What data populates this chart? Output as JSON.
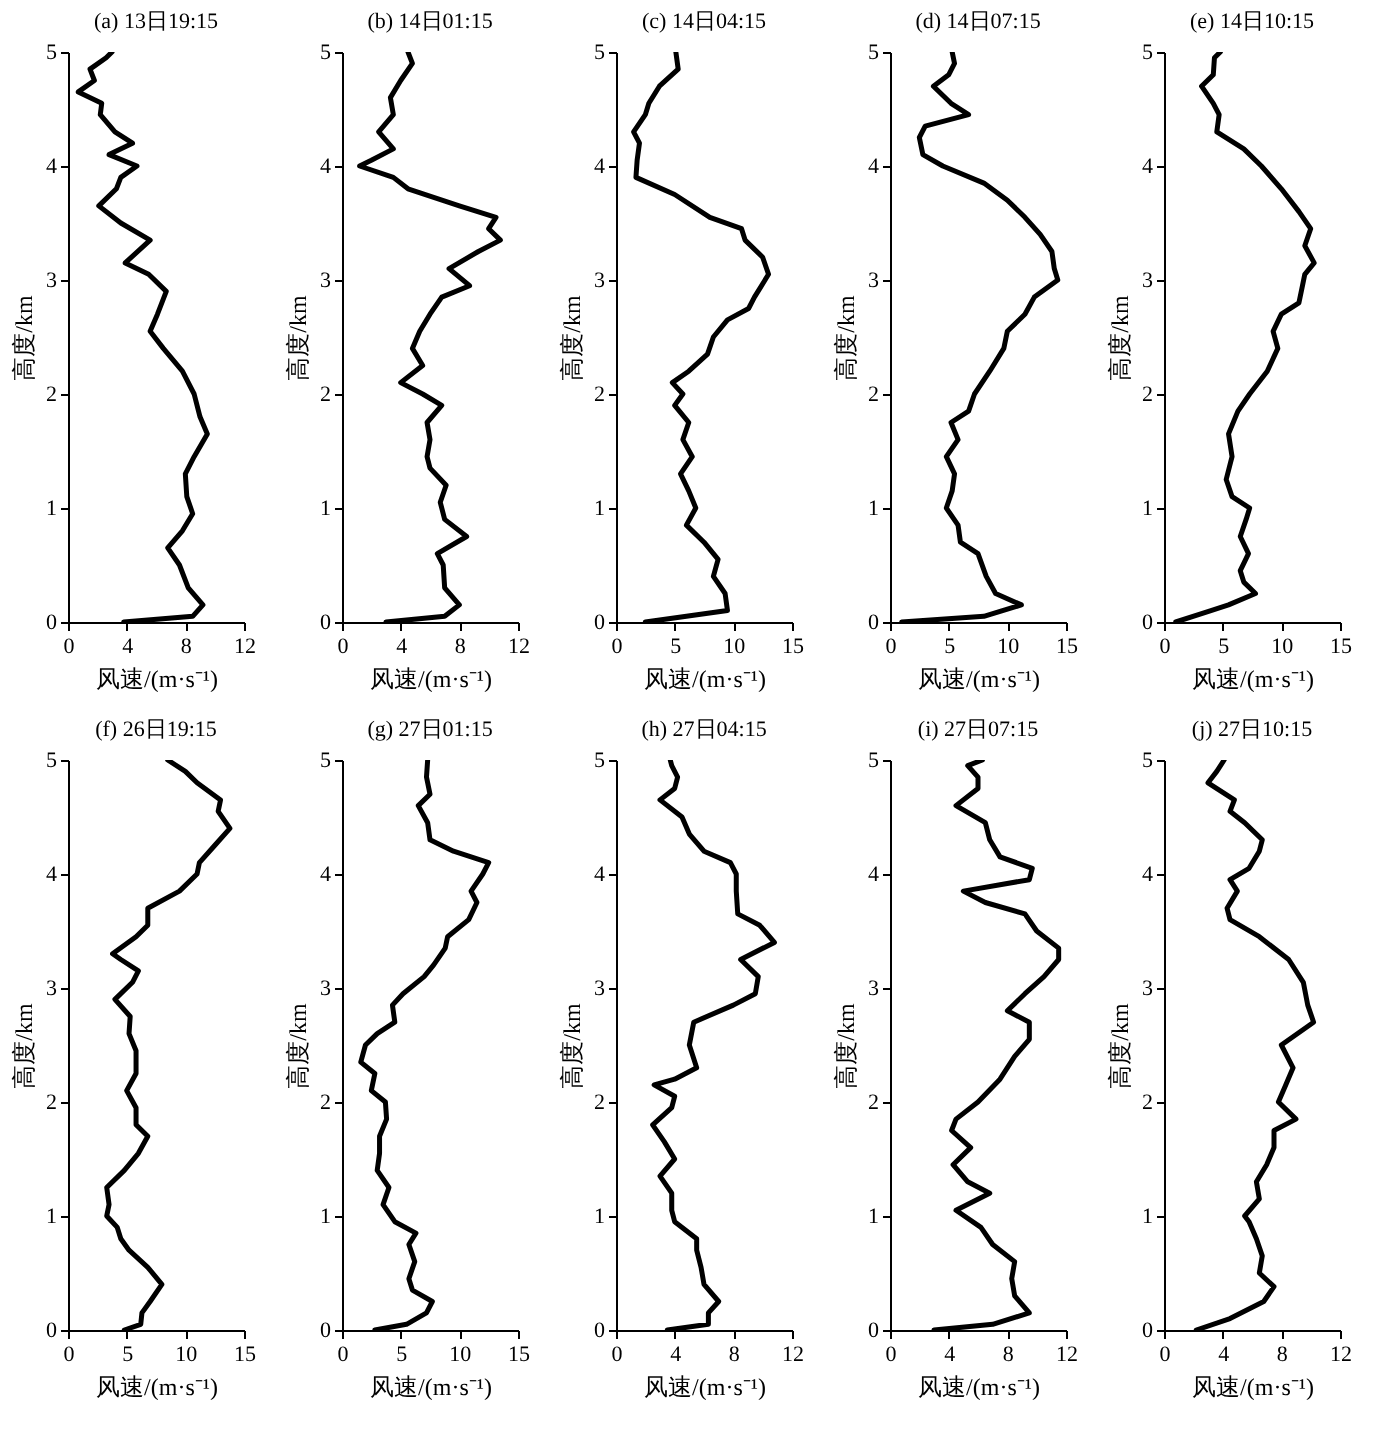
{
  "chart_data": [
    {
      "type": "line",
      "title": "(a) 13日19:15",
      "xlabel": "风速/(m·s⁻¹)",
      "ylabel": "高度/km",
      "xlim": [
        0,
        12
      ],
      "xticks": [
        0,
        4,
        8,
        12
      ],
      "ylim": [
        0,
        5
      ],
      "yticks": [
        0,
        1,
        2,
        3,
        4,
        5
      ],
      "series": [
        {
          "color": "#000000",
          "x": [
            3.8,
            8.5,
            9.2,
            8.2,
            7.6,
            6.8,
            7.8,
            8.5,
            8.1,
            8.0,
            8.6,
            9.5,
            9.0,
            8.6,
            7.8,
            6.5,
            5.6,
            6.1,
            6.7,
            5.5,
            3.9,
            5.6,
            3.6,
            2.1,
            3.3,
            3.6,
            4.7,
            2.8,
            4.4,
            3.2,
            2.2,
            2.3,
            0.7,
            1.8,
            1.5,
            2.6,
            3.0
          ],
          "values": [
            0,
            0.05,
            0.15,
            0.3,
            0.5,
            0.65,
            0.8,
            0.95,
            1.1,
            1.3,
            1.45,
            1.65,
            1.8,
            2.0,
            2.2,
            2.4,
            2.55,
            2.7,
            2.9,
            3.05,
            3.15,
            3.35,
            3.5,
            3.65,
            3.8,
            3.9,
            4.0,
            4.1,
            4.2,
            4.3,
            4.45,
            4.55,
            4.65,
            4.75,
            4.85,
            4.95,
            5.0
          ]
        }
      ]
    },
    {
      "type": "line",
      "title": "(b) 14日01:15",
      "xlabel": "风速/(m·s⁻¹)",
      "ylabel": "高度/km",
      "xlim": [
        0,
        12
      ],
      "xticks": [
        0,
        4,
        8,
        12
      ],
      "ylim": [
        0,
        5
      ],
      "yticks": [
        0,
        1,
        2,
        3,
        4,
        5
      ],
      "series": [
        {
          "color": "#000000",
          "x": [
            3.0,
            7.0,
            8.0,
            7.0,
            6.9,
            6.5,
            8.5,
            7.0,
            6.7,
            7.1,
            6.0,
            5.8,
            6.0,
            5.8,
            6.8,
            5.5,
            4.0,
            5.5,
            4.8,
            5.3,
            6.0,
            6.8,
            8.7,
            7.3,
            9.3,
            10.8,
            10.0,
            10.5,
            8.0,
            4.5,
            3.5,
            1.2,
            2.0,
            3.5,
            2.5,
            3.5,
            3.3,
            4.0,
            4.8,
            4.5
          ],
          "values": [
            0,
            0.05,
            0.15,
            0.3,
            0.5,
            0.6,
            0.75,
            0.9,
            1.05,
            1.2,
            1.35,
            1.45,
            1.6,
            1.75,
            1.9,
            2.0,
            2.1,
            2.25,
            2.4,
            2.55,
            2.7,
            2.85,
            2.95,
            3.1,
            3.25,
            3.35,
            3.45,
            3.55,
            3.65,
            3.8,
            3.9,
            4.0,
            4.05,
            4.15,
            4.3,
            4.45,
            4.6,
            4.75,
            4.9,
            5.0
          ]
        }
      ]
    },
    {
      "type": "line",
      "title": "(c) 14日04:15",
      "xlabel": "风速/(m·s⁻¹)",
      "ylabel": "高度/km",
      "xlim": [
        0,
        15
      ],
      "xticks": [
        0,
        5,
        10,
        15
      ],
      "ylim": [
        0,
        5
      ],
      "yticks": [
        0,
        1,
        2,
        3,
        4,
        5
      ],
      "series": [
        {
          "color": "#000000",
          "x": [
            2.5,
            6.0,
            9.5,
            9.3,
            8.3,
            8.7,
            7.5,
            6.0,
            6.8,
            6.2,
            5.5,
            6.5,
            5.7,
            6.2,
            5.0,
            5.7,
            4.8,
            6.2,
            7.8,
            8.3,
            9.5,
            11.3,
            11.8,
            13.0,
            12.5,
            11.0,
            10.7,
            8.0,
            5.0,
            1.7,
            1.8,
            2.0,
            1.5,
            2.5,
            2.8,
            3.7,
            5.3,
            5.1
          ],
          "values": [
            0,
            0.05,
            0.1,
            0.25,
            0.4,
            0.55,
            0.7,
            0.85,
            1.0,
            1.15,
            1.3,
            1.45,
            1.6,
            1.75,
            1.9,
            2.0,
            2.1,
            2.2,
            2.35,
            2.5,
            2.65,
            2.75,
            2.85,
            3.05,
            3.2,
            3.35,
            3.45,
            3.55,
            3.75,
            3.9,
            4.05,
            4.2,
            4.3,
            4.45,
            4.55,
            4.7,
            4.85,
            5.0
          ]
        }
      ]
    },
    {
      "type": "line",
      "title": "(d) 14日07:15",
      "xlabel": "风速/(m·s⁻¹)",
      "ylabel": "高度/km",
      "xlim": [
        0,
        15
      ],
      "xticks": [
        0,
        5,
        10,
        15
      ],
      "ylim": [
        0,
        5
      ],
      "yticks": [
        0,
        1,
        2,
        3,
        4,
        5
      ],
      "series": [
        {
          "color": "#000000",
          "x": [
            1.0,
            8.0,
            11.2,
            9.0,
            8.2,
            7.5,
            6.0,
            5.8,
            4.8,
            5.3,
            5.5,
            4.8,
            5.8,
            5.2,
            6.7,
            7.2,
            8.5,
            9.7,
            10.0,
            11.5,
            12.3,
            14.3,
            14.0,
            13.8,
            12.8,
            11.5,
            10.0,
            8.0,
            4.5,
            2.8,
            2.5,
            3.0,
            6.7,
            5.2,
            3.7,
            5.0,
            5.5,
            5.3
          ],
          "values": [
            0,
            0.05,
            0.15,
            0.25,
            0.4,
            0.6,
            0.7,
            0.85,
            1.0,
            1.15,
            1.3,
            1.45,
            1.6,
            1.75,
            1.85,
            2.0,
            2.2,
            2.4,
            2.55,
            2.7,
            2.85,
            3.0,
            3.1,
            3.25,
            3.4,
            3.55,
            3.7,
            3.85,
            4.0,
            4.1,
            4.25,
            4.35,
            4.45,
            4.55,
            4.7,
            4.8,
            4.9,
            5.0
          ]
        }
      ]
    },
    {
      "type": "line",
      "title": "(e) 14日10:15",
      "xlabel": "风速/(m·s⁻¹)",
      "ylabel": "高度/km",
      "xlim": [
        0,
        15
      ],
      "xticks": [
        0,
        5,
        10,
        15
      ],
      "ylim": [
        0,
        5
      ],
      "yticks": [
        0,
        1,
        2,
        3,
        4,
        5
      ],
      "series": [
        {
          "color": "#000000",
          "x": [
            1.0,
            4.0,
            5.5,
            7.8,
            6.8,
            6.5,
            7.2,
            6.5,
            7.0,
            7.3,
            5.8,
            5.3,
            5.8,
            5.5,
            6.3,
            7.3,
            8.8,
            9.7,
            9.3,
            10.0,
            11.5,
            11.8,
            12.0,
            12.8,
            12.0,
            12.5,
            11.5,
            10.0,
            8.3,
            6.8,
            4.5,
            4.7,
            4.2,
            3.2,
            4.2,
            4.3,
            4.8
          ],
          "values": [
            0,
            0.1,
            0.15,
            0.25,
            0.35,
            0.45,
            0.6,
            0.75,
            0.9,
            1.0,
            1.1,
            1.25,
            1.45,
            1.65,
            1.85,
            2.0,
            2.2,
            2.4,
            2.55,
            2.7,
            2.8,
            2.95,
            3.05,
            3.15,
            3.3,
            3.45,
            3.6,
            3.8,
            4.0,
            4.15,
            4.3,
            4.45,
            4.55,
            4.7,
            4.8,
            4.95,
            5.0
          ]
        }
      ]
    },
    {
      "type": "line",
      "title": "(f) 26日19:15",
      "xlabel": "风速/(m·s⁻¹)",
      "ylabel": "高度/km",
      "xlim": [
        0,
        15
      ],
      "xticks": [
        0,
        5,
        10,
        15
      ],
      "ylim": [
        0,
        5
      ],
      "yticks": [
        0,
        1,
        2,
        3,
        4,
        5
      ],
      "series": [
        {
          "color": "#000000",
          "x": [
            4.8,
            6.2,
            6.3,
            7.0,
            8.0,
            6.8,
            5.2,
            4.5,
            4.2,
            3.3,
            3.5,
            3.3,
            4.8,
            6.0,
            6.8,
            5.8,
            5.8,
            5.0,
            5.8,
            5.8,
            5.2,
            5.3,
            4.0,
            5.5,
            6.0,
            4.5,
            3.8,
            5.8,
            6.8,
            6.8,
            9.5,
            11.0,
            11.2,
            12.5,
            13.8,
            12.8,
            13.0,
            11.0,
            10.0,
            8.5
          ],
          "values": [
            0,
            0.05,
            0.15,
            0.25,
            0.4,
            0.55,
            0.7,
            0.8,
            0.9,
            1.0,
            1.1,
            1.25,
            1.4,
            1.55,
            1.7,
            1.8,
            1.95,
            2.1,
            2.25,
            2.45,
            2.6,
            2.75,
            2.9,
            3.05,
            3.15,
            3.25,
            3.3,
            3.45,
            3.55,
            3.7,
            3.85,
            4.0,
            4.1,
            4.25,
            4.4,
            4.55,
            4.65,
            4.8,
            4.9,
            5.0
          ]
        }
      ]
    },
    {
      "type": "line",
      "title": "(g) 27日01:15",
      "xlabel": "风速/(m·s⁻¹)",
      "ylabel": "高度/km",
      "xlim": [
        0,
        15
      ],
      "xticks": [
        0,
        5,
        10,
        15
      ],
      "ylim": [
        0,
        5
      ],
      "yticks": [
        0,
        1,
        2,
        3,
        4,
        5
      ],
      "series": [
        {
          "color": "#000000",
          "x": [
            2.8,
            5.5,
            7.2,
            7.7,
            6.0,
            5.7,
            6.2,
            5.7,
            6.3,
            4.5,
            3.5,
            4.0,
            3.0,
            3.2,
            3.2,
            3.8,
            3.7,
            2.5,
            2.8,
            1.6,
            2.0,
            3.0,
            4.5,
            4.3,
            5.2,
            7.0,
            7.8,
            8.8,
            9.0,
            10.8,
            11.5,
            11.0,
            12.0,
            12.5,
            9.5,
            7.5,
            7.3,
            6.5,
            7.5,
            7.2,
            7.3
          ],
          "values": [
            0,
            0.05,
            0.15,
            0.25,
            0.35,
            0.45,
            0.6,
            0.75,
            0.85,
            0.95,
            1.1,
            1.25,
            1.4,
            1.55,
            1.7,
            1.85,
            2.0,
            2.1,
            2.25,
            2.35,
            2.5,
            2.6,
            2.7,
            2.85,
            2.95,
            3.1,
            3.2,
            3.35,
            3.45,
            3.6,
            3.75,
            3.85,
            4.0,
            4.1,
            4.2,
            4.3,
            4.45,
            4.6,
            4.7,
            4.85,
            5.0
          ]
        }
      ]
    },
    {
      "type": "line",
      "title": "(h) 27日04:15",
      "xlabel": "风速/(m·s⁻¹)",
      "ylabel": "高度/km",
      "xlim": [
        0,
        12
      ],
      "xticks": [
        0,
        4,
        8,
        12
      ],
      "ylim": [
        0,
        5
      ],
      "yticks": [
        0,
        1,
        2,
        3,
        4,
        5
      ],
      "series": [
        {
          "color": "#000000",
          "x": [
            3.5,
            6.3,
            6.3,
            7.0,
            6.0,
            5.8,
            5.5,
            5.5,
            4.0,
            3.8,
            3.8,
            3.0,
            4.0,
            3.3,
            2.5,
            3.8,
            4.0,
            2.6,
            4.0,
            5.5,
            5.0,
            5.3,
            8.0,
            9.5,
            9.7,
            8.5,
            10.8,
            9.8,
            8.3,
            8.2,
            8.2,
            7.8,
            6.0,
            5.0,
            4.5,
            3.0,
            4.0,
            4.2,
            3.8,
            3.7
          ],
          "values": [
            0,
            0.05,
            0.15,
            0.25,
            0.4,
            0.55,
            0.7,
            0.8,
            0.95,
            1.05,
            1.2,
            1.35,
            1.5,
            1.65,
            1.8,
            1.95,
            2.05,
            2.15,
            2.2,
            2.3,
            2.5,
            2.7,
            2.85,
            2.95,
            3.1,
            3.25,
            3.4,
            3.55,
            3.65,
            3.85,
            4.0,
            4.1,
            4.2,
            4.35,
            4.5,
            4.65,
            4.75,
            4.85,
            4.95,
            5.0
          ]
        }
      ]
    },
    {
      "type": "line",
      "title": "(i) 27日07:15",
      "xlabel": "风速/(m·s⁻¹)",
      "ylabel": "高度/km",
      "xlim": [
        0,
        12
      ],
      "xticks": [
        0,
        4,
        8,
        12
      ],
      "ylim": [
        0,
        5
      ],
      "yticks": [
        0,
        1,
        2,
        3,
        4,
        5
      ],
      "series": [
        {
          "color": "#000000",
          "x": [
            3.0,
            7.0,
            9.5,
            8.5,
            8.3,
            8.5,
            7.0,
            6.2,
            4.5,
            6.8,
            5.3,
            4.3,
            5.5,
            4.2,
            4.5,
            6.0,
            7.5,
            8.5,
            9.5,
            9.5,
            8.0,
            9.2,
            10.5,
            11.5,
            11.5,
            10.0,
            9.2,
            6.5,
            5.0,
            9.5,
            9.7,
            7.5,
            6.8,
            6.5,
            4.5,
            6.0,
            6.0,
            5.3,
            6.3
          ],
          "values": [
            0,
            0.05,
            0.15,
            0.3,
            0.45,
            0.6,
            0.75,
            0.9,
            1.05,
            1.2,
            1.3,
            1.45,
            1.6,
            1.75,
            1.85,
            2.0,
            2.2,
            2.4,
            2.55,
            2.7,
            2.8,
            2.95,
            3.1,
            3.25,
            3.35,
            3.5,
            3.65,
            3.75,
            3.85,
            3.95,
            4.05,
            4.15,
            4.3,
            4.45,
            4.6,
            4.75,
            4.85,
            4.95,
            5.0
          ]
        }
      ]
    },
    {
      "type": "line",
      "title": "(j) 27日10:15",
      "xlabel": "风速/(m·s⁻¹)",
      "ylabel": "高度/km",
      "xlim": [
        0,
        12
      ],
      "xticks": [
        0,
        4,
        8,
        12
      ],
      "ylim": [
        0,
        5
      ],
      "yticks": [
        0,
        1,
        2,
        3,
        4,
        5
      ],
      "series": [
        {
          "color": "#000000",
          "x": [
            2.2,
            4.5,
            6.8,
            7.5,
            6.5,
            6.7,
            6.3,
            5.8,
            5.5,
            6.5,
            6.3,
            7.0,
            7.5,
            7.5,
            9.0,
            7.8,
            8.3,
            8.8,
            8.0,
            10.2,
            9.8,
            9.5,
            8.5,
            6.5,
            4.5,
            4.3,
            5.0,
            4.5,
            5.8,
            6.5,
            6.7,
            5.5,
            4.5,
            4.8,
            3.0,
            3.6,
            4.1
          ],
          "values": [
            0,
            0.1,
            0.25,
            0.38,
            0.5,
            0.65,
            0.8,
            0.95,
            1.0,
            1.15,
            1.3,
            1.45,
            1.6,
            1.75,
            1.85,
            2.0,
            2.15,
            2.3,
            2.5,
            2.7,
            2.85,
            3.05,
            3.25,
            3.45,
            3.6,
            3.7,
            3.85,
            3.95,
            4.05,
            4.2,
            4.3,
            4.45,
            4.55,
            4.65,
            4.8,
            4.9,
            5.0
          ]
        }
      ]
    }
  ]
}
